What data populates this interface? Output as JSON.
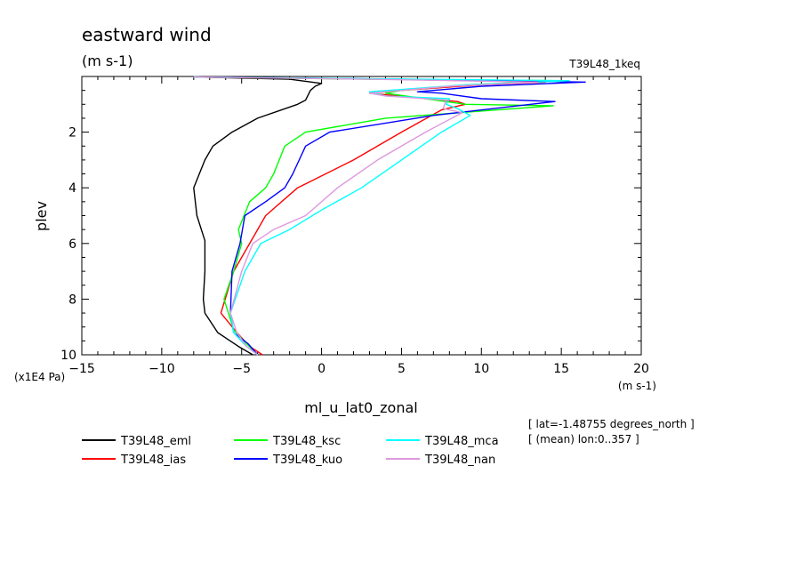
{
  "header": {
    "title": "eastward wind",
    "units": "(m s-1)",
    "run": "T39L48_1keq"
  },
  "axes": {
    "ylabel": "plev",
    "yscale_note": "(x1E4 Pa)",
    "xunits": "(m s-1)",
    "xlabel": "ml_u_lat0_zonal"
  },
  "info": {
    "lat": "[ lat=-1.48755 degrees_north ]",
    "lon": "[ (mean) lon:0..357 ]"
  },
  "chart_data": {
    "type": "line",
    "title": "eastward wind",
    "xlabel": "ml_u_lat0_zonal",
    "ylabel": "plev",
    "xlim": [
      -15,
      20
    ],
    "ylim": [
      10,
      0
    ],
    "y_inverted": true,
    "grid": false,
    "x_ticks": [
      -15,
      -10,
      -5,
      0,
      5,
      10,
      15,
      20
    ],
    "y_ticks": [
      2,
      4,
      6,
      8,
      10
    ],
    "legend_position": "bottom",
    "series": [
      {
        "name": "T39L48_eml",
        "color": "#000000",
        "points": [
          [
            -8,
            0.02
          ],
          [
            -2,
            0.1
          ],
          [
            0,
            0.25
          ],
          [
            -0.4,
            0.35
          ],
          [
            -0.7,
            0.5
          ],
          [
            -1,
            0.85
          ],
          [
            -1.5,
            1.0
          ],
          [
            -4,
            1.5
          ],
          [
            -5.6,
            2.0
          ],
          [
            -6.8,
            2.5
          ],
          [
            -7.3,
            3.0
          ],
          [
            -8,
            4.0
          ],
          [
            -7.8,
            5.0
          ],
          [
            -7.3,
            5.9
          ],
          [
            -7.3,
            7.0
          ],
          [
            -7.4,
            8.0
          ],
          [
            -7.3,
            8.5
          ],
          [
            -6.5,
            9.2
          ],
          [
            -5.2,
            9.7
          ],
          [
            -4.3,
            10.0
          ]
        ]
      },
      {
        "name": "T39L48_ias",
        "color": "#ff0000",
        "points": [
          [
            -8,
            0.02
          ],
          [
            4,
            0.1
          ],
          [
            14,
            0.2
          ],
          [
            10,
            0.3
          ],
          [
            5,
            0.5
          ],
          [
            3,
            0.6
          ],
          [
            8.5,
            0.9
          ],
          [
            9,
            1.0
          ],
          [
            7.5,
            1.2
          ],
          [
            5,
            2.0
          ],
          [
            2,
            3.0
          ],
          [
            -1.5,
            4.0
          ],
          [
            -3.5,
            5.0
          ],
          [
            -5.5,
            7.0
          ],
          [
            -6.3,
            8.5
          ],
          [
            -5.3,
            9.2
          ],
          [
            -4.5,
            9.7
          ],
          [
            -3.7,
            10.0
          ]
        ]
      },
      {
        "name": "T39L48_ksc",
        "color": "#00ff00",
        "points": [
          [
            -8,
            0.02
          ],
          [
            3,
            0.1
          ],
          [
            15,
            0.15
          ],
          [
            9,
            0.3
          ],
          [
            5,
            0.5
          ],
          [
            4,
            0.6
          ],
          [
            9,
            1.0
          ],
          [
            14.5,
            1.05
          ],
          [
            4,
            1.5
          ],
          [
            -1,
            2.0
          ],
          [
            -2.3,
            2.5
          ],
          [
            -3,
            3.5
          ],
          [
            -3.5,
            4.0
          ],
          [
            -4.5,
            4.5
          ],
          [
            -5.2,
            5.5
          ],
          [
            -5,
            6.0
          ],
          [
            -5.5,
            7.0
          ],
          [
            -6.1,
            8.0
          ],
          [
            -5.5,
            9.1
          ],
          [
            -4.7,
            9.6
          ],
          [
            -4,
            10.0
          ]
        ]
      },
      {
        "name": "T39L48_kuo",
        "color": "#0000ff",
        "points": [
          [
            -8,
            0.02
          ],
          [
            5,
            0.1
          ],
          [
            16.5,
            0.2
          ],
          [
            10,
            0.35
          ],
          [
            6,
            0.55
          ],
          [
            7.5,
            0.6
          ],
          [
            10,
            0.8
          ],
          [
            14.6,
            0.9
          ],
          [
            7,
            1.4
          ],
          [
            0.5,
            2.0
          ],
          [
            -1,
            2.5
          ],
          [
            -1.8,
            3.5
          ],
          [
            -2.3,
            4.0
          ],
          [
            -3.5,
            4.5
          ],
          [
            -4.8,
            5.0
          ],
          [
            -5.1,
            6.0
          ],
          [
            -5.6,
            7.0
          ],
          [
            -5.7,
            8.5
          ],
          [
            -5.5,
            9.2
          ],
          [
            -4.6,
            9.6
          ],
          [
            -4,
            10.0
          ]
        ]
      },
      {
        "name": "T39L48_mca",
        "color": "#00ffff",
        "points": [
          [
            -8,
            0.02
          ],
          [
            6,
            0.1
          ],
          [
            15.5,
            0.15
          ],
          [
            9,
            0.3
          ],
          [
            3,
            0.55
          ],
          [
            4,
            0.7
          ],
          [
            8,
            0.8
          ],
          [
            7.8,
            1.0
          ],
          [
            8.5,
            1.15
          ],
          [
            9.3,
            1.4
          ],
          [
            7.5,
            2.0
          ],
          [
            5,
            3.0
          ],
          [
            2.5,
            4.0
          ],
          [
            0,
            4.8
          ],
          [
            -2,
            5.5
          ],
          [
            -3.8,
            6.0
          ],
          [
            -4.8,
            7.0
          ],
          [
            -5.7,
            8.5
          ],
          [
            -5.5,
            9.2
          ],
          [
            -4.7,
            9.7
          ],
          [
            -4,
            10.0
          ]
        ]
      },
      {
        "name": "T39L48_nan",
        "color": "#dd99dd",
        "points": [
          [
            -8,
            0.02
          ],
          [
            3,
            0.1
          ],
          [
            13.5,
            0.2
          ],
          [
            8,
            0.35
          ],
          [
            3,
            0.6
          ],
          [
            4,
            0.7
          ],
          [
            7.8,
            0.85
          ],
          [
            7.6,
            1.15
          ],
          [
            8.8,
            1.3
          ],
          [
            6.5,
            2.0
          ],
          [
            3.5,
            3.0
          ],
          [
            1,
            4.0
          ],
          [
            -1,
            5.0
          ],
          [
            -3,
            5.5
          ],
          [
            -4.3,
            6.0
          ],
          [
            -5,
            7.0
          ],
          [
            -5.7,
            8.5
          ],
          [
            -5.3,
            9.2
          ],
          [
            -4.7,
            9.7
          ],
          [
            -4,
            10.0
          ]
        ]
      }
    ]
  }
}
